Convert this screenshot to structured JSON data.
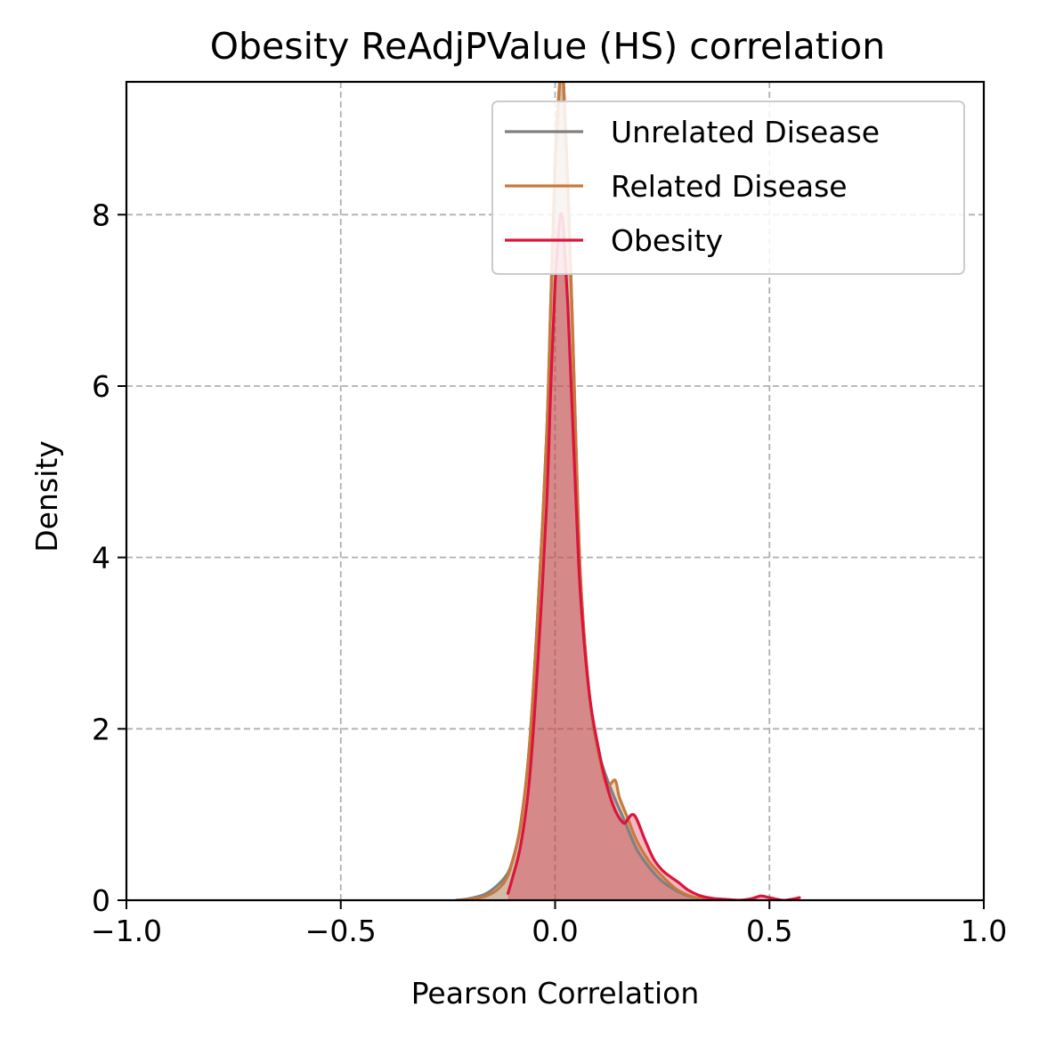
{
  "chart_data": {
    "type": "area",
    "title": "Obesity ReAdjPValue (HS) correlation",
    "xlabel": "Pearson Correlation",
    "ylabel": "Density",
    "xlim": [
      -1.0,
      1.0
    ],
    "ylim": [
      0,
      9.55
    ],
    "xticks": [
      -1.0,
      -0.5,
      0.0,
      0.5,
      1.0
    ],
    "xtick_labels": [
      "−1.0",
      "−0.5",
      "0.0",
      "0.5",
      "1.0"
    ],
    "yticks": [
      0,
      2,
      4,
      6,
      8
    ],
    "ytick_labels": [
      "0",
      "2",
      "4",
      "6",
      "8"
    ],
    "grid": true,
    "legend_position": "top-right",
    "series": [
      {
        "name": "Unrelated Disease",
        "color": "#808080",
        "x": [
          -0.23,
          -0.2,
          -0.16,
          -0.12,
          -0.1,
          -0.08,
          -0.06,
          -0.04,
          -0.02,
          -0.01,
          0.0,
          0.01,
          0.015,
          0.02,
          0.03,
          0.04,
          0.05,
          0.06,
          0.08,
          0.1,
          0.13,
          0.16,
          0.19,
          0.22,
          0.25,
          0.28,
          0.31,
          0.34,
          0.37
        ],
        "y": [
          0.0,
          0.02,
          0.08,
          0.25,
          0.45,
          0.9,
          1.8,
          3.4,
          5.4,
          7.0,
          8.6,
          9.5,
          9.7,
          9.5,
          8.3,
          6.8,
          5.1,
          3.7,
          2.4,
          1.75,
          1.3,
          0.95,
          0.6,
          0.38,
          0.22,
          0.12,
          0.05,
          0.02,
          0.0
        ]
      },
      {
        "name": "Related Disease",
        "color": "#c8793c",
        "x": [
          -0.22,
          -0.16,
          -0.12,
          -0.1,
          -0.08,
          -0.06,
          -0.04,
          -0.02,
          -0.01,
          0.0,
          0.01,
          0.015,
          0.02,
          0.03,
          0.04,
          0.05,
          0.06,
          0.08,
          0.1,
          0.12,
          0.14,
          0.15,
          0.17,
          0.19,
          0.22,
          0.25,
          0.28,
          0.31,
          0.34,
          0.38,
          0.42
        ],
        "y": [
          0.0,
          0.05,
          0.2,
          0.45,
          0.9,
          1.8,
          3.4,
          5.4,
          7.0,
          8.6,
          9.5,
          9.75,
          9.5,
          8.3,
          6.8,
          5.1,
          3.7,
          2.4,
          1.75,
          1.35,
          1.4,
          1.2,
          0.95,
          0.7,
          0.45,
          0.28,
          0.14,
          0.06,
          0.02,
          0.01,
          0.0
        ]
      },
      {
        "name": "Obesity",
        "color": "#dc143c",
        "x": [
          -0.11,
          -0.1,
          -0.08,
          -0.06,
          -0.04,
          -0.02,
          -0.01,
          0.0,
          0.01,
          0.015,
          0.02,
          0.03,
          0.04,
          0.05,
          0.06,
          0.08,
          0.1,
          0.12,
          0.14,
          0.16,
          0.17,
          0.18,
          0.19,
          0.21,
          0.23,
          0.25,
          0.27,
          0.29,
          0.31,
          0.34,
          0.37,
          0.4,
          0.43,
          0.46,
          0.48,
          0.5,
          0.53,
          0.55,
          0.57
        ],
        "y": [
          0.08,
          0.25,
          0.65,
          1.4,
          2.8,
          4.6,
          6.0,
          7.2,
          7.9,
          8.0,
          7.8,
          6.9,
          5.7,
          4.5,
          3.5,
          2.4,
          1.8,
          1.35,
          1.05,
          0.9,
          0.95,
          1.0,
          0.95,
          0.7,
          0.48,
          0.35,
          0.27,
          0.2,
          0.12,
          0.05,
          0.02,
          0.01,
          0.0,
          0.02,
          0.05,
          0.03,
          0.0,
          0.01,
          0.03
        ]
      }
    ]
  }
}
